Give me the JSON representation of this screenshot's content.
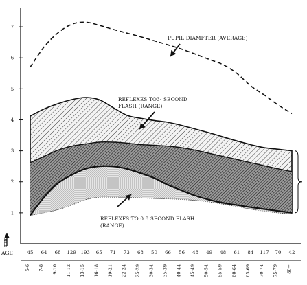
{
  "chart_data": {
    "type": "area",
    "title": "",
    "ylabel": "mm",
    "xlabel": "AGE",
    "ylim": [
      0,
      7.6
    ],
    "yticks": [
      1,
      2,
      3,
      4,
      5,
      6,
      7
    ],
    "categories": [
      "5-6",
      "7-8",
      "9-10",
      "11-12",
      "13-15",
      "16-18",
      "19-21",
      "22-24",
      "25-29",
      "30-34",
      "35-39",
      "40-44",
      "45-49",
      "50-54",
      "55-59",
      "60-64",
      "65-69",
      "70-74",
      "75-79",
      "80+"
    ],
    "counts": [
      "45",
      "64",
      "68",
      "129",
      "193",
      "65",
      "71",
      "73",
      "68",
      "50",
      "66",
      "56",
      "48",
      "49",
      "48",
      "61",
      "84",
      "117",
      "70",
      "42"
    ],
    "series": [
      {
        "name": "PUPIL DIAMETER (AVERAGE)",
        "style": "dashed",
        "values": [
          5.7,
          6.35,
          6.8,
          7.08,
          7.15,
          7.05,
          6.92,
          6.8,
          6.68,
          6.55,
          6.42,
          6.28,
          6.12,
          5.95,
          5.78,
          5.5,
          5.1,
          4.8,
          4.48,
          4.2
        ]
      },
      {
        "name": "REFLEXES TO 3- SECOND FLASH (RANGE)",
        "style": "range",
        "upper": [
          4.12,
          4.35,
          4.52,
          4.65,
          4.72,
          4.65,
          4.4,
          4.15,
          4.05,
          3.98,
          3.92,
          3.82,
          3.7,
          3.58,
          3.45,
          3.32,
          3.2,
          3.1,
          3.05,
          3.0
        ],
        "lower": [
          0.92,
          1.5,
          1.95,
          2.22,
          2.42,
          2.5,
          2.5,
          2.42,
          2.28,
          2.12,
          1.9,
          1.72,
          1.55,
          1.42,
          1.32,
          1.25,
          1.18,
          1.12,
          1.06,
          1.0
        ]
      },
      {
        "name": "REFLEXES TO 0.8 SECOND FLASH (RANGE)",
        "style": "range",
        "upper": [
          2.62,
          2.82,
          3.02,
          3.15,
          3.22,
          3.28,
          3.28,
          3.25,
          3.2,
          3.18,
          3.15,
          3.1,
          3.02,
          2.92,
          2.82,
          2.72,
          2.62,
          2.52,
          2.42,
          2.33
        ],
        "lower": [
          0.92,
          1.0,
          1.1,
          1.25,
          1.42,
          1.5,
          1.5,
          1.5,
          1.48,
          1.46,
          1.45,
          1.43,
          1.4,
          1.35,
          1.28,
          1.2,
          1.12,
          1.05,
          1.0,
          0.96
        ]
      }
    ],
    "annotations": [
      {
        "id": "pupil",
        "lines": [
          "PUPIL DIAMFTER (AVERAGE)"
        ]
      },
      {
        "id": "reflex3",
        "lines": [
          "REFLEXES TO3- SECOND",
          "FLASH (RANGE)"
        ]
      },
      {
        "id": "reflex08",
        "lines": [
          "REFLEXFS TO 0.8 SECOND FLASH",
          "(RANGE)"
        ]
      }
    ],
    "colors": {
      "ink": "#111111",
      "hatch": "#2b2b2b",
      "stipple": "#8c8c8c",
      "background": "#ffffff"
    }
  }
}
